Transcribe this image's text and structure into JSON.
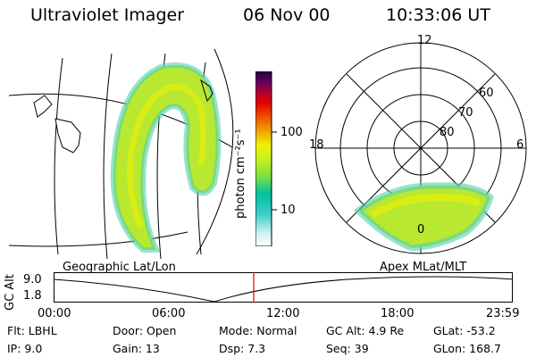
{
  "header": {
    "instrument": "Ultraviolet Imager",
    "date": "06 Nov 00",
    "time": "10:33:06 UT"
  },
  "colorbar": {
    "unit_label": "photon cm⁻²s⁻¹",
    "ticks": [
      "100",
      "10"
    ],
    "scale": "log",
    "colors": [
      "#ffffff",
      "#c8f0f0",
      "#40d0c8",
      "#00c0a0",
      "#80e040",
      "#c8f020",
      "#f0f000",
      "#f0a000",
      "#f05000",
      "#e00000",
      "#b00030",
      "#600060",
      "#200040"
    ]
  },
  "geo_panel": {
    "caption": "Geographic Lat/Lon"
  },
  "polar_panel": {
    "caption": "Apex MLat/MLT",
    "mlt_labels": {
      "top": "12",
      "left": "18",
      "right": "6",
      "bottom": "0"
    },
    "lat_labels": [
      "60",
      "70",
      "80"
    ]
  },
  "altitude_plot": {
    "ylabel": "GC Alt",
    "yticks": [
      "9.0",
      "1.8"
    ],
    "xticks": [
      "00:00",
      "06:00",
      "12:00",
      "18:00",
      "23:59"
    ],
    "marker_color": "#e00000"
  },
  "info": {
    "flt": "Flt: LBHL",
    "ip": "IP:  9.0",
    "door": "Door: Open",
    "gain": "Gain: 13",
    "mode": "Mode: Normal",
    "dsp": "Dsp:     7.3",
    "gcalt": "GC Alt: 4.9 Re",
    "seq": "Seq: 39",
    "glat": "GLat:  -53.2",
    "glon": "GLon: 168.7"
  }
}
